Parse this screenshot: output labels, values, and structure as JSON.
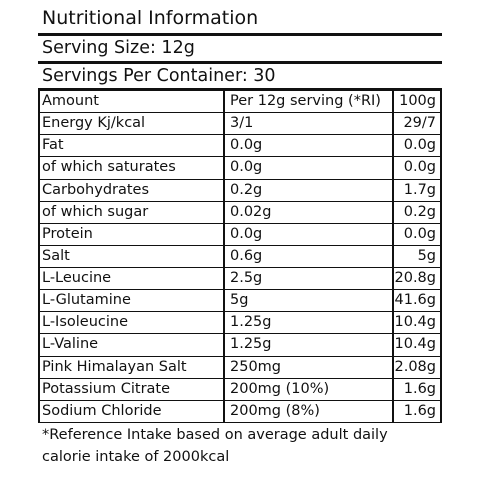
{
  "title": "Nutritional Information",
  "serving_size": "Serving Size: 12g",
  "servings_per_container": "Servings Per Container: 30",
  "table": {
    "headers": [
      "Amount",
      "Per 12g serving (*RI)",
      "100g"
    ],
    "rows": [
      [
        "Energy Kj/kcal",
        "3/1",
        "29/7"
      ],
      [
        "Fat",
        "0.0g",
        "0.0g"
      ],
      [
        "of which saturates",
        "0.0g",
        "0.0g"
      ],
      [
        "Carbohydrates",
        "0.2g",
        "1.7g"
      ],
      [
        "of which sugar",
        "0.02g",
        "0.2g"
      ],
      [
        "Protein",
        "0.0g",
        "0.0g"
      ],
      [
        "Salt",
        "0.6g",
        "5g"
      ],
      [
        "L-Leucine",
        "2.5g",
        "20.8g"
      ],
      [
        "L-Glutamine",
        "5g",
        "41.6g"
      ],
      [
        "L-Isoleucine",
        "1.25g",
        "10.4g"
      ],
      [
        "L-Valine",
        "1.25g",
        "10.4g"
      ],
      [
        "Pink Himalayan Salt",
        "250mg",
        "2.08g"
      ],
      [
        "Potassium Citrate",
        "200mg (10%)",
        "1.6g"
      ],
      [
        "Sodium Chloride",
        "200mg (8%)",
        "1.6g"
      ]
    ]
  },
  "footnote": "*Reference Intake based on average adult daily calorie intake of 2000kcal"
}
